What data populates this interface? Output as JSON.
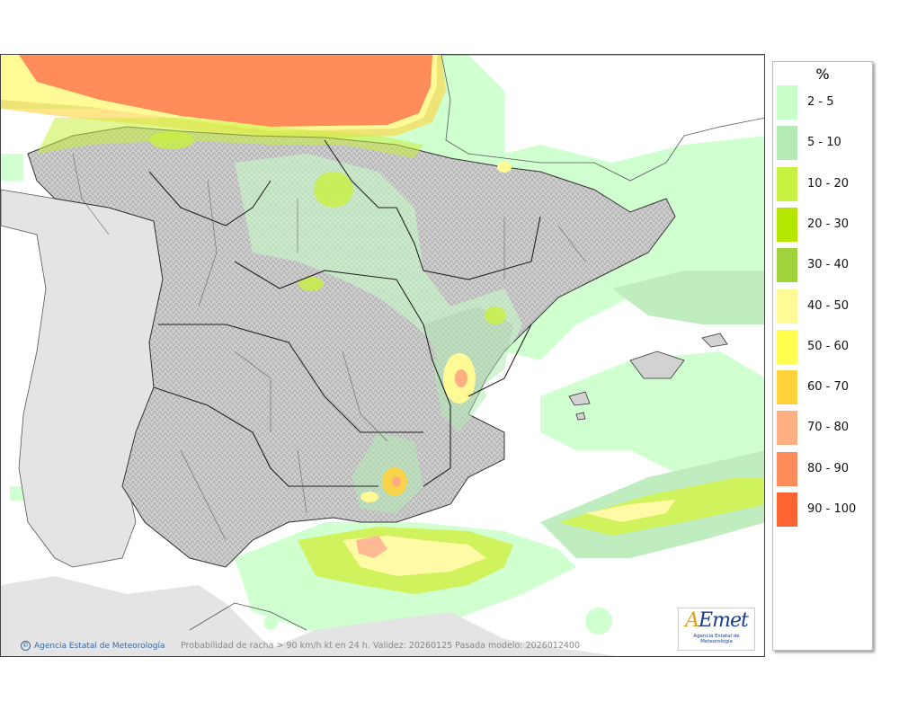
{
  "legend": {
    "title": "%",
    "items": [
      {
        "label": "2 - 5",
        "color": "#c8ffc8"
      },
      {
        "label": "5 - 10",
        "color": "#b4ebb4"
      },
      {
        "label": "10 - 20",
        "color": "#c8f040"
      },
      {
        "label": "20 - 30",
        "color": "#b4e600"
      },
      {
        "label": "30 - 40",
        "color": "#a0d23c"
      },
      {
        "label": "40 - 50",
        "color": "#fffa96"
      },
      {
        "label": "50 - 60",
        "color": "#ffff50"
      },
      {
        "label": "60 - 70",
        "color": "#ffd23c"
      },
      {
        "label": "70 - 80",
        "color": "#ffaf82"
      },
      {
        "label": "80 - 90",
        "color": "#ff8c5a"
      },
      {
        "label": "90 - 100",
        "color": "#ff6432"
      }
    ]
  },
  "credit": "Agencia Estatal de Meteorología",
  "footer_note": "Probabilidad de racha > 90 km/h kt en 24 h. Validez: 20260125 Pasada modelo: 2026012400",
  "logo": {
    "brand_a": "A",
    "brand_rest": "Emet",
    "subtitle": "Agencia Estatal de Meteorología"
  }
}
